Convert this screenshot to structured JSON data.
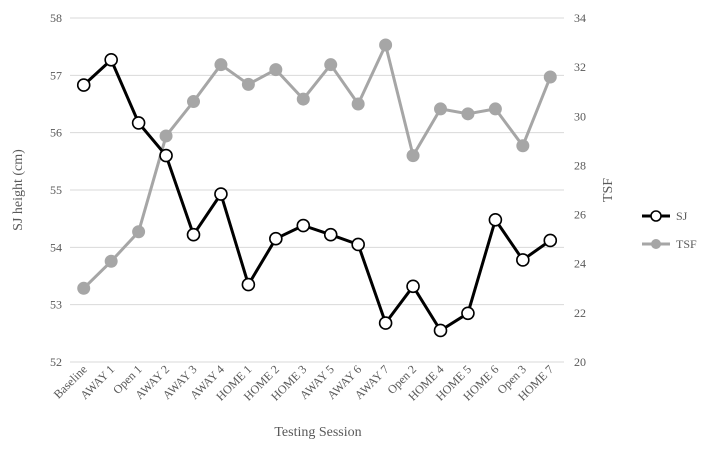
{
  "chart_data": {
    "type": "line",
    "xlabel": "Testing Session",
    "ylabel_left": "SJ height (cm)",
    "ylabel_right": "TSF",
    "categories": [
      "Baseline",
      "AWAY 1",
      "Open 1",
      "AWAY 2",
      "AWAY 3",
      "AWAY 4",
      "HOME 1",
      "HOME 2",
      "HOME 3",
      "AWAY 5",
      "AWAY 6",
      "AWAY 7",
      "Open 2",
      "HOME 4",
      "HOME 5",
      "HOME 6",
      "Open 3",
      "HOME 7"
    ],
    "ylim_left": [
      52,
      58
    ],
    "ylim_right": [
      20,
      34
    ],
    "yticks_left": [
      "52",
      "53",
      "54",
      "55",
      "56",
      "57",
      "58"
    ],
    "yticks_right": [
      "20",
      "22",
      "24",
      "26",
      "28",
      "30",
      "32",
      "34"
    ],
    "grid": "horizontal",
    "legend_position": "right",
    "series": [
      {
        "name": "SJ",
        "axis": "left",
        "color": "#000000",
        "marker": "open-circle",
        "values": [
          56.83,
          57.27,
          56.17,
          55.6,
          54.22,
          54.93,
          53.35,
          54.15,
          54.38,
          54.22,
          54.05,
          52.68,
          53.32,
          52.55,
          52.85,
          54.48,
          53.78,
          54.12
        ]
      },
      {
        "name": "TSF",
        "axis": "right",
        "color": "#a6a6a6",
        "marker": "filled-circle",
        "values": [
          23.0,
          24.1,
          25.3,
          29.2,
          30.6,
          32.1,
          31.3,
          31.9,
          30.7,
          32.1,
          30.5,
          32.9,
          28.4,
          30.3,
          30.1,
          30.3,
          28.8,
          31.6
        ]
      }
    ]
  }
}
